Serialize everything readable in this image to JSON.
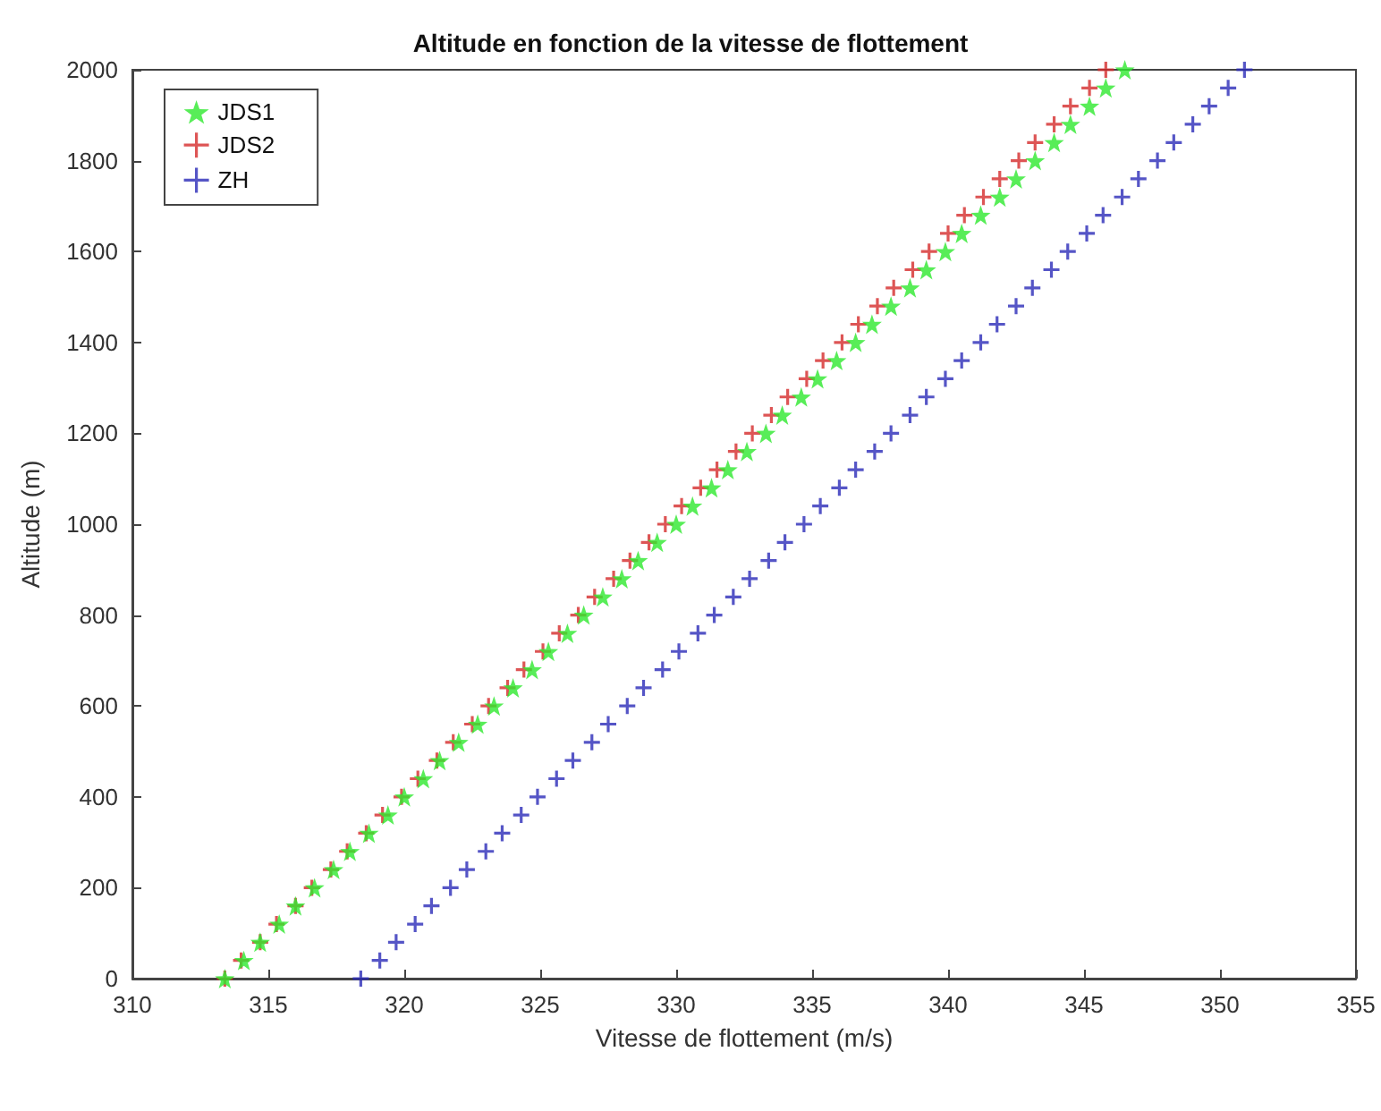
{
  "chart_data": {
    "type": "scatter",
    "title": "Altitude en fonction de la vitesse de flottement",
    "xlabel": "Vitesse de flottement (m/s)",
    "ylabel": "Altitude (m)",
    "xlim": [
      310,
      355
    ],
    "xticks": [
      310,
      315,
      320,
      325,
      330,
      335,
      340,
      345,
      350,
      355
    ],
    "ylim": [
      0,
      2000
    ],
    "yticks": [
      0,
      200,
      400,
      600,
      800,
      1000,
      1200,
      1400,
      1600,
      1800,
      2000
    ],
    "grid": false,
    "legend": "top left",
    "series": [
      {
        "name": "JDS1",
        "color": "#2ee82e",
        "marker": "star",
        "x": [
          313.4,
          314.1,
          314.7,
          315.4,
          316.0,
          316.7,
          317.4,
          318.0,
          318.7,
          319.4,
          320.0,
          320.7,
          321.3,
          322.0,
          322.7,
          323.3,
          324.0,
          324.7,
          325.3,
          326.0,
          326.6,
          327.3,
          328.0,
          328.6,
          329.3,
          330.0,
          330.6,
          331.3,
          331.9,
          332.6,
          333.3,
          333.9,
          334.6,
          335.2,
          335.9,
          336.6,
          337.2,
          337.9,
          338.6,
          339.2,
          339.9,
          340.5,
          341.2,
          341.9,
          342.5,
          343.2,
          343.9,
          344.5,
          345.2,
          345.8,
          346.5
        ],
        "values": [
          0,
          40,
          80,
          120,
          160,
          200,
          240,
          280,
          320,
          360,
          400,
          440,
          480,
          520,
          560,
          600,
          640,
          680,
          720,
          760,
          800,
          840,
          880,
          920,
          960,
          1000,
          1040,
          1080,
          1120,
          1160,
          1200,
          1240,
          1280,
          1320,
          1360,
          1400,
          1440,
          1480,
          1520,
          1560,
          1600,
          1640,
          1680,
          1720,
          1760,
          1800,
          1840,
          1880,
          1920,
          1960,
          2000
        ]
      },
      {
        "name": "JDS2",
        "color": "#d42a2a",
        "marker": "cross",
        "x": [
          313.4,
          314.0,
          314.7,
          315.3,
          316.0,
          316.6,
          317.3,
          317.9,
          318.6,
          319.2,
          319.9,
          320.5,
          321.2,
          321.8,
          322.5,
          323.1,
          323.8,
          324.4,
          325.1,
          325.7,
          326.4,
          327.0,
          327.7,
          328.3,
          329.0,
          329.6,
          330.2,
          330.9,
          331.5,
          332.2,
          332.8,
          333.5,
          334.1,
          334.8,
          335.4,
          336.1,
          336.7,
          337.4,
          338.0,
          338.7,
          339.3,
          340.0,
          340.6,
          341.3,
          341.9,
          342.6,
          343.2,
          343.9,
          344.5,
          345.2,
          345.8
        ],
        "values": [
          0,
          40,
          80,
          120,
          160,
          200,
          240,
          280,
          320,
          360,
          400,
          440,
          480,
          520,
          560,
          600,
          640,
          680,
          720,
          760,
          800,
          840,
          880,
          920,
          960,
          1000,
          1040,
          1080,
          1120,
          1160,
          1200,
          1240,
          1280,
          1320,
          1360,
          1400,
          1440,
          1480,
          1520,
          1560,
          1600,
          1640,
          1680,
          1720,
          1760,
          1800,
          1840,
          1880,
          1920,
          1960,
          2000
        ]
      },
      {
        "name": "ZH",
        "color": "#2a2ab8",
        "marker": "cross",
        "x": [
          318.4,
          319.1,
          319.7,
          320.4,
          321.0,
          321.7,
          322.3,
          323.0,
          323.6,
          324.3,
          324.9,
          325.6,
          326.2,
          326.9,
          327.5,
          328.2,
          328.8,
          329.5,
          330.1,
          330.8,
          331.4,
          332.1,
          332.7,
          333.4,
          334.0,
          334.7,
          335.3,
          336.0,
          336.6,
          337.3,
          337.9,
          338.6,
          339.2,
          339.9,
          340.5,
          341.2,
          341.8,
          342.5,
          343.1,
          343.8,
          344.4,
          345.1,
          345.7,
          346.4,
          347.0,
          347.7,
          348.3,
          349.0,
          349.6,
          350.3,
          350.9
        ],
        "values": [
          0,
          40,
          80,
          120,
          160,
          200,
          240,
          280,
          320,
          360,
          400,
          440,
          480,
          520,
          560,
          600,
          640,
          680,
          720,
          760,
          800,
          840,
          880,
          920,
          960,
          1000,
          1040,
          1080,
          1120,
          1160,
          1200,
          1240,
          1280,
          1320,
          1360,
          1400,
          1440,
          1480,
          1520,
          1560,
          1600,
          1640,
          1680,
          1720,
          1760,
          1800,
          1840,
          1880,
          1920,
          1960,
          2000
        ]
      }
    ]
  }
}
